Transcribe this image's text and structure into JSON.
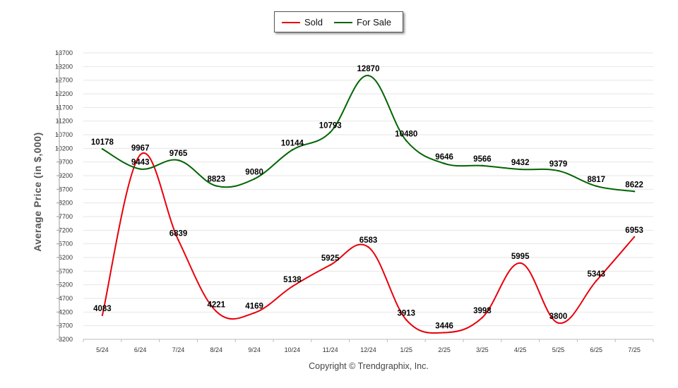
{
  "chart_data": {
    "type": "line",
    "categories": [
      "5/24",
      "6/24",
      "7/24",
      "8/24",
      "9/24",
      "10/24",
      "11/24",
      "12/24",
      "1/25",
      "2/25",
      "3/25",
      "4/25",
      "5/25",
      "6/25",
      "7/25"
    ],
    "series": [
      {
        "name": "Sold",
        "color": "#e8000b",
        "values": [
          4083,
          9967,
          6839,
          4221,
          4169,
          5138,
          5925,
          6583,
          3913,
          3446,
          3998,
          5995,
          3800,
          5343,
          6953
        ]
      },
      {
        "name": "For Sale",
        "color": "#006400",
        "values": [
          10178,
          9443,
          9765,
          8823,
          9080,
          10144,
          10793,
          12870,
          10480,
          9646,
          9566,
          9432,
          9379,
          8817,
          8622
        ]
      }
    ],
    "ylabel": "Average Price (in $,000)",
    "xlabel": "",
    "ylim": [
      3200,
      13700
    ],
    "yticks": [
      3200,
      3700,
      4200,
      4700,
      5200,
      5700,
      6200,
      6700,
      7200,
      7700,
      8200,
      8700,
      9200,
      9700,
      10200,
      10700,
      11200,
      11700,
      12200,
      12700,
      13200,
      13700
    ],
    "grid": true,
    "legend": "top-center"
  },
  "copyright": "Copyright © Trendgraphix, Inc."
}
